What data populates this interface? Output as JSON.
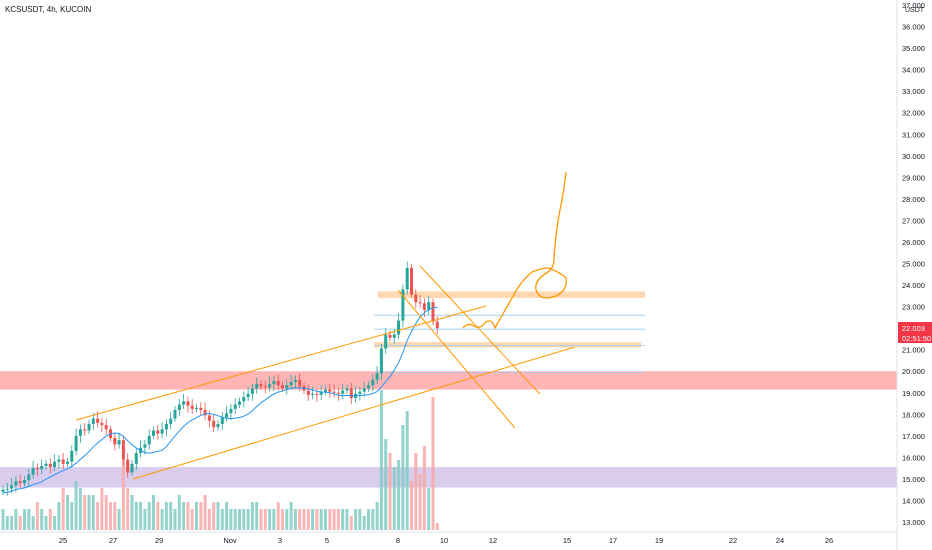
{
  "chart_data": {
    "type": "candlestick",
    "title": "KCSUSDT, 4h, KUCOIN",
    "currency_label": "USDT",
    "price_axis": {
      "ticks": [
        "13.000",
        "14.000",
        "15.000",
        "16.000",
        "17.000",
        "18.000",
        "19.000",
        "20.000",
        "21.000",
        "22.000",
        "23.000",
        "24.000",
        "25.000",
        "26.000",
        "27.000",
        "28.000",
        "29.000",
        "30.000",
        "31.000",
        "32.000",
        "33.000",
        "34.000",
        "35.000",
        "36.000",
        "37.000"
      ],
      "ylim": [
        12.7,
        37.4
      ]
    },
    "time_axis": {
      "labels": [
        "25",
        "27",
        "29",
        "Nov",
        "3",
        "5",
        "8",
        "10",
        "12",
        "15",
        "17",
        "19",
        "22",
        "24",
        "26"
      ]
    },
    "last_price": {
      "value": "22.003",
      "countdown": "02:51:50",
      "color": "#f23645"
    },
    "colors": {
      "up": "#26a69a",
      "down": "#ef5350",
      "ma": "#2196f3",
      "drawing": "#ff9800",
      "red_zone": "#ff9c9c",
      "purple_zone": "#c9b6e6",
      "orange_zone": "#ffd3a8"
    },
    "closes": [
      14.5,
      14.55,
      14.7,
      14.9,
      14.8,
      14.95,
      15.2,
      15.5,
      15.45,
      15.6,
      15.7,
      15.55,
      15.8,
      15.9,
      15.7,
      15.8,
      16.3,
      17.0,
      17.3,
      17.25,
      17.55,
      17.8,
      17.6,
      17.5,
      17.3,
      16.9,
      16.6,
      16.8,
      15.9,
      15.3,
      15.7,
      16.2,
      16.45,
      16.6,
      17.0,
      17.25,
      17.1,
      17.3,
      17.55,
      17.8,
      18.2,
      18.45,
      18.6,
      18.4,
      18.25,
      18.3,
      18.2,
      17.95,
      17.7,
      17.4,
      17.55,
      17.85,
      18.05,
      18.25,
      18.45,
      18.6,
      18.8,
      18.95,
      19.2,
      19.4,
      19.3,
      19.25,
      19.4,
      19.55,
      19.35,
      19.2,
      19.35,
      19.5,
      19.6,
      19.3,
      19.1,
      18.9,
      18.95,
      18.9,
      19.05,
      19.15,
      19.05,
      19.0,
      18.95,
      19.1,
      19.2,
      18.75,
      18.95,
      19.05,
      19.2,
      19.35,
      19.6,
      19.9,
      21.05,
      21.7,
      21.55,
      21.7,
      22.35,
      23.8,
      24.8,
      23.55,
      23.2,
      23.15,
      22.85,
      23.2,
      22.3,
      22.0
    ],
    "volumes": [
      3,
      2,
      2,
      3,
      2,
      3,
      3,
      2,
      4,
      3,
      2,
      3,
      2,
      4,
      6,
      5,
      4,
      7,
      6,
      5,
      5,
      5,
      4,
      6,
      5,
      4,
      4,
      3,
      10,
      6,
      5,
      4,
      4,
      3,
      4,
      5,
      4,
      3,
      4,
      4,
      3,
      5,
      4,
      4,
      3,
      4,
      4,
      5,
      3,
      4,
      4,
      3,
      4,
      3,
      3,
      3,
      3,
      3,
      4,
      4,
      3,
      3,
      3,
      3,
      4,
      3,
      3,
      4,
      3,
      3,
      3,
      3,
      3,
      3,
      3,
      3,
      3,
      3,
      3,
      3,
      3,
      2,
      3,
      3,
      2,
      3,
      3,
      4,
      20,
      13,
      11,
      9,
      10,
      15,
      17,
      7,
      11,
      8,
      12,
      6,
      19,
      1
    ],
    "ma_period": 10,
    "zones": [
      {
        "name": "red-resistance-zone",
        "from": 19.15,
        "to": 20.0
      },
      {
        "name": "purple-support-zone",
        "from": 14.6,
        "to": 15.55
      },
      {
        "name": "orange-upper-zone",
        "from": 23.4,
        "to": 23.7
      },
      {
        "name": "orange-lower-zone",
        "from": 21.1,
        "to": 21.35
      }
    ],
    "horizontal_lines": [
      22.6,
      21.95,
      21.2,
      19.95
    ]
  }
}
